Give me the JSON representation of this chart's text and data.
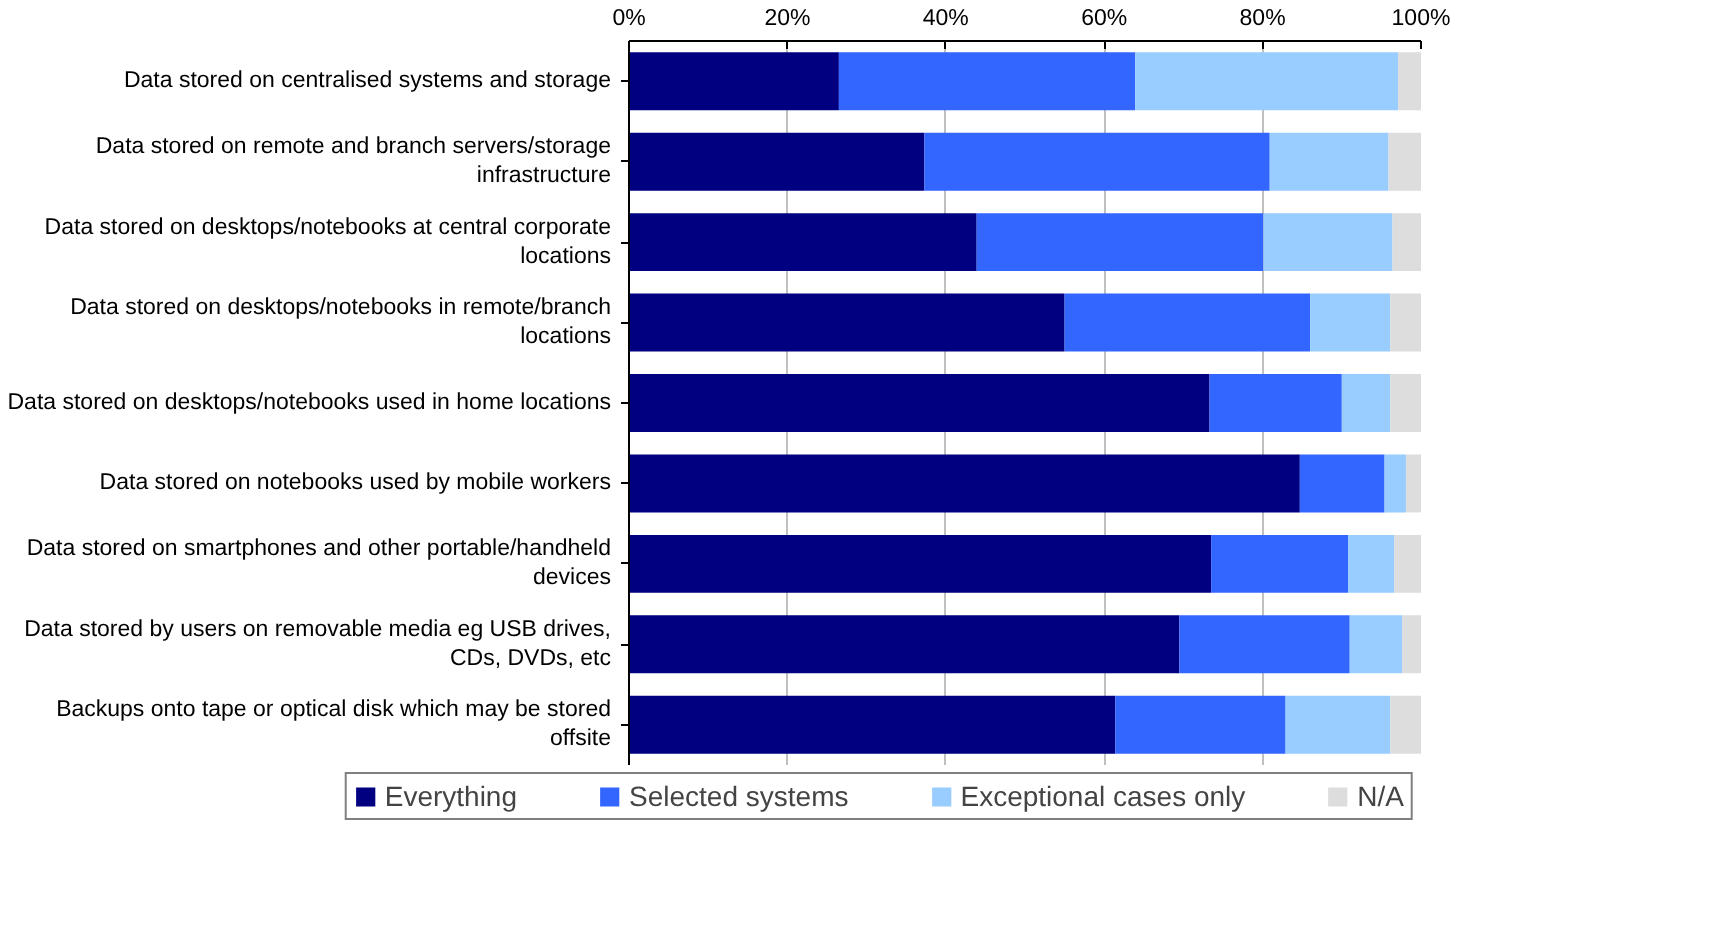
{
  "chart_data": {
    "type": "bar",
    "orientation": "horizontal",
    "stacked": true,
    "categories": [
      "Data stored on centralised systems and storage",
      "Data stored on remote and branch servers/storage infrastructure",
      "Data stored on desktops/notebooks at central corporate locations",
      "Data stored on desktops/notebooks in remote/branch locations",
      "Data stored on desktops/notebooks used in home locations",
      "Data stored on notebooks used by mobile workers",
      "Data stored on smartphones and other portable/handheld devices",
      "Data stored by users on removable media eg USB drives, CDs, DVDs, etc",
      "Backups onto tape or optical disk which may be stored offsite"
    ],
    "series": [
      {
        "name": "Everything",
        "color": "#000080",
        "values": [
          26.5,
          37.3,
          43.9,
          55.0,
          73.3,
          84.7,
          73.5,
          69.5,
          61.4
        ]
      },
      {
        "name": "Selected systems",
        "color": "#3366ff",
        "values": [
          37.4,
          43.6,
          36.2,
          31.0,
          16.7,
          10.7,
          17.3,
          21.5,
          21.5
        ]
      },
      {
        "name": "Exceptional cases only",
        "color": "#99ccff",
        "values": [
          33.2,
          15.0,
          16.3,
          10.1,
          6.1,
          2.7,
          5.8,
          6.6,
          13.2
        ]
      },
      {
        "name": "N/A",
        "color": "#dddddd",
        "values": [
          2.9,
          4.1,
          3.6,
          3.9,
          3.9,
          1.9,
          3.4,
          2.4,
          3.9
        ]
      }
    ],
    "xlim": [
      0,
      100
    ],
    "xticks": [
      {
        "value": 0,
        "label": "0%"
      },
      {
        "value": 20,
        "label": "20%"
      },
      {
        "value": 40,
        "label": "40%"
      },
      {
        "value": 60,
        "label": "60%"
      },
      {
        "value": 80,
        "label": "80%"
      },
      {
        "value": 100,
        "label": "100%"
      }
    ],
    "grid": "x",
    "legend": "bottom"
  }
}
